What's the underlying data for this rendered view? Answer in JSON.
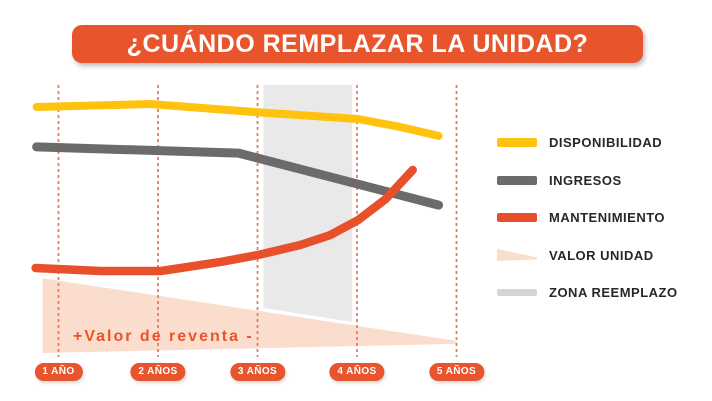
{
  "title": {
    "text": "¿CUÁNDO REMPLAZAR LA UNIDAD?"
  },
  "colors": {
    "accent": "#E8542C",
    "disponibilidad": "#FFC20E",
    "ingresos": "#6B6B6B",
    "mantenimiento": "#E8502B",
    "valor_unidad": "#FBDDCE",
    "zona_reemplazo": "#E9E9E9",
    "zona_reemplazo_swatch": "#D4D4D4",
    "grid_dash": "#F0795B",
    "legend_text": "#272727"
  },
  "legend": {
    "items": [
      {
        "key": "disponibilidad",
        "label": "DISPONIBILIDAD"
      },
      {
        "key": "ingresos",
        "label": "INGRESOS"
      },
      {
        "key": "mantenimiento",
        "label": "MANTENIMIENTO"
      },
      {
        "key": "valor_unidad",
        "label": "VALOR UNIDAD"
      },
      {
        "key": "zona_reemplazo",
        "label": "ZONA REEMPLAZO"
      }
    ]
  },
  "x_axis": {
    "labels": [
      "1 AÑO",
      "2 AÑOS",
      "3 AÑOS",
      "4 AÑOS",
      "5 AÑOS"
    ]
  },
  "annotations": {
    "resale_value": "+Valor de reventa -"
  },
  "chart_data": {
    "type": "line",
    "title": "¿CUÁNDO REMPLAZAR LA UNIDAD?",
    "x_axis": {
      "unit": "años",
      "categories": [
        "1 AÑO",
        "2 AÑOS",
        "3 AÑOS",
        "4 AÑOS",
        "5 AÑOS"
      ],
      "tick_years": [
        1,
        2,
        3,
        4,
        5
      ],
      "range_years": [
        0.75,
        5.0
      ]
    },
    "y_axis": {
      "label": "",
      "range": [
        0,
        100
      ],
      "ticks_shown": false
    },
    "grid": "vertical dashed lines at each year",
    "legend_position": "right",
    "series": [
      {
        "name": "DISPONIBILIDAD",
        "color": "#FFC20E",
        "points": [
          [
            0.78,
            91.8
          ],
          [
            1.92,
            92.9
          ],
          [
            2.98,
            89.9
          ],
          [
            4.01,
            87.3
          ],
          [
            4.44,
            84.3
          ],
          [
            4.82,
            81.0
          ]
        ]
      },
      {
        "name": "INGRESOS",
        "color": "#6B6B6B",
        "points": [
          [
            0.78,
            76.9
          ],
          [
            2.81,
            74.6
          ],
          [
            4.82,
            55.2
          ]
        ]
      },
      {
        "name": "MANTENIMIENTO",
        "color": "#E8502B",
        "points": [
          [
            0.77,
            31.7
          ],
          [
            1.42,
            30.6
          ],
          [
            2.03,
            30.6
          ],
          [
            2.63,
            34.0
          ],
          [
            3.01,
            36.6
          ],
          [
            3.43,
            40.3
          ],
          [
            3.73,
            44.0
          ],
          [
            4.01,
            49.6
          ],
          [
            4.29,
            57.5
          ],
          [
            4.56,
            68.3
          ]
        ]
      }
    ],
    "area": {
      "name": "VALOR UNIDAD",
      "annotation": "+Valor de reventa -",
      "color": "#FBDDCE",
      "polygon": [
        [
          0.84,
          27.9
        ],
        [
          5.0,
          4.5
        ],
        [
          5.0,
          3.4
        ],
        [
          0.84,
          0
        ]
      ]
    },
    "zone": {
      "name": "ZONA REEMPLAZO",
      "color": "#E9E9E9",
      "x_range_years": [
        3.06,
        3.95
      ],
      "polygon": [
        [
          3.06,
          100
        ],
        [
          3.95,
          100
        ],
        [
          3.95,
          11.6
        ],
        [
          3.06,
          16.8
        ]
      ]
    }
  }
}
